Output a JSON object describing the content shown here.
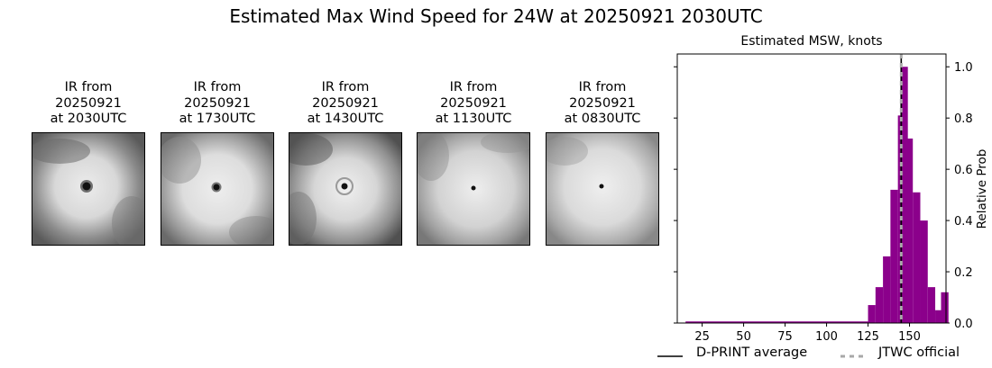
{
  "title": "Estimated Max Wind Speed for 24W at 20250921 2030UTC",
  "panels": [
    {
      "line1": "IR from",
      "line2": "20250921",
      "line3": "at 2030UTC"
    },
    {
      "line1": "IR from",
      "line2": "20250921",
      "line3": "at 1730UTC"
    },
    {
      "line1": "IR from",
      "line2": "20250921",
      "line3": "at 1430UTC"
    },
    {
      "line1": "IR from",
      "line2": "20250921",
      "line3": "at 1130UTC"
    },
    {
      "line1": "IR from",
      "line2": "20250921",
      "line3": "at 0830UTC"
    }
  ],
  "chart_data": {
    "type": "bar",
    "title": "Estimated MSW, knots",
    "xlabel": "",
    "ylabel": "Relative Prob",
    "xlim": [
      10,
      172
    ],
    "ylim": [
      0,
      1.05
    ],
    "xticks": [
      25,
      50,
      75,
      100,
      125,
      150
    ],
    "yticks": [
      0.0,
      0.2,
      0.4,
      0.6,
      0.8,
      1.0
    ],
    "bin_width": 4.5,
    "bins": [
      {
        "x": 15,
        "y": 0.0
      },
      {
        "x": 125,
        "y": 0.07
      },
      {
        "x": 129.5,
        "y": 0.14
      },
      {
        "x": 134,
        "y": 0.26
      },
      {
        "x": 138.5,
        "y": 0.52
      },
      {
        "x": 143,
        "y": 0.81
      },
      {
        "x": 144.5,
        "y": 1.0
      },
      {
        "x": 147.5,
        "y": 0.72
      },
      {
        "x": 152,
        "y": 0.51
      },
      {
        "x": 156.5,
        "y": 0.4
      },
      {
        "x": 161,
        "y": 0.14
      },
      {
        "x": 165.5,
        "y": 0.05
      },
      {
        "x": 169,
        "y": 0.12
      }
    ],
    "dprint_average": 145,
    "jtwc_official": 145,
    "legend": {
      "dprint": "D-PRINT average",
      "jtwc": "JTWC official"
    },
    "bar_color": "#8b008b"
  }
}
